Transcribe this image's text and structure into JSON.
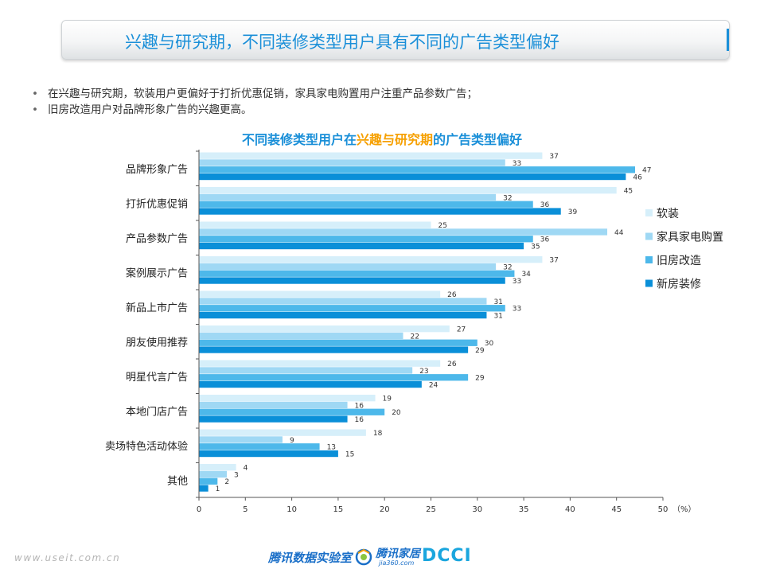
{
  "header": {
    "title": "兴趣与研究期，不同装修类型用户具有不同的广告类型偏好"
  },
  "bullets": [
    "在兴趣与研究期，软装用户更偏好于打折优惠促销，家具家电购置用户注重产品参数广告；",
    "旧房改造用户对品牌形象广告的兴趣更高。"
  ],
  "chart_title": {
    "prefix": "不同装修类型用户在",
    "highlight": "兴趣与研究期",
    "suffix": "的广告类型偏好"
  },
  "chart_data": {
    "type": "bar",
    "orientation": "horizontal",
    "categories": [
      "品牌形象广告",
      "打折优惠促销",
      "产品参数广告",
      "案例展示广告",
      "新品上市广告",
      "朋友使用推荐",
      "明星代言广告",
      "本地门店广告",
      "卖场特色活动体验",
      "其他"
    ],
    "series": [
      {
        "name": "软装",
        "color": "#d6effa",
        "values": [
          37,
          45,
          25,
          37,
          26,
          27,
          26,
          19,
          18,
          4
        ]
      },
      {
        "name": "家具家电购置",
        "color": "#9fd8f4",
        "values": [
          33,
          32,
          44,
          32,
          31,
          22,
          23,
          16,
          9,
          3
        ]
      },
      {
        "name": "旧房改造",
        "color": "#4db8ea",
        "values": [
          47,
          36,
          36,
          34,
          33,
          30,
          29,
          20,
          13,
          2
        ]
      },
      {
        "name": "新房装修",
        "color": "#0a8fd8",
        "values": [
          46,
          39,
          35,
          33,
          31,
          29,
          24,
          16,
          15,
          1
        ]
      }
    ],
    "xlim": [
      0,
      50
    ],
    "xticks": [
      0,
      5,
      10,
      15,
      20,
      25,
      30,
      35,
      40,
      45,
      50
    ],
    "xunit": "（%）",
    "legend_position": "right"
  },
  "footer": {
    "watermark": "www.useit.com.cn",
    "tencent_lab": "腾讯数据实验室",
    "jia": "腾讯家居",
    "jia_sub": "jia360.com",
    "dcci": "DCCI"
  }
}
